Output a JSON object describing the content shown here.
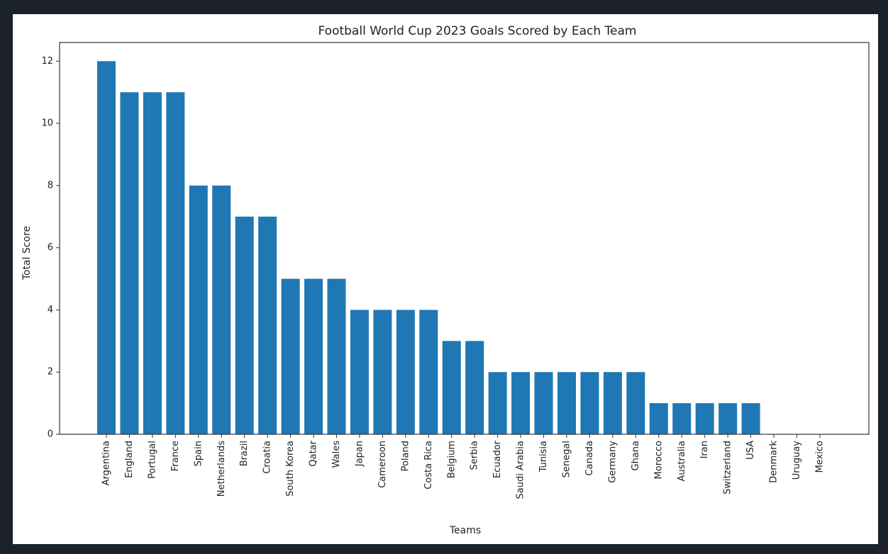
{
  "chart_data": {
    "type": "bar",
    "title": "Football World Cup 2023 Goals Scored by Each Team",
    "xlabel": "Teams",
    "ylabel": "Total Score",
    "ylim": [
      0,
      12.6
    ],
    "yticks": [
      0,
      2,
      4,
      6,
      8,
      10,
      12
    ],
    "grid": false,
    "colors": {
      "bar": "#1f77b4",
      "axis": "#333333",
      "text": "#222222"
    },
    "categories": [
      "Argentina",
      "England",
      "Portugal",
      "France",
      "Spain",
      "Netherlands",
      "Brazil",
      "Croatia",
      "South Korea",
      "Qatar",
      "Wales",
      "Japan",
      "Cameroon",
      "Poland",
      "Costa Rica",
      "Belgium",
      "Serbia",
      "Ecuador",
      "Saudi Arabia",
      "Tunisia",
      "Senegal",
      "Canada",
      "Germany",
      "Ghana",
      "Morocco",
      "Australia",
      "Iran",
      "Switzerland",
      "USA",
      "Denmark",
      "Uruguay",
      "Mexico"
    ],
    "values": [
      12,
      11,
      11,
      11,
      8,
      8,
      7,
      7,
      5,
      5,
      5,
      4,
      4,
      4,
      4,
      3,
      3,
      2,
      2,
      2,
      2,
      2,
      2,
      2,
      1,
      1,
      1,
      1,
      1,
      0,
      0,
      0
    ]
  }
}
